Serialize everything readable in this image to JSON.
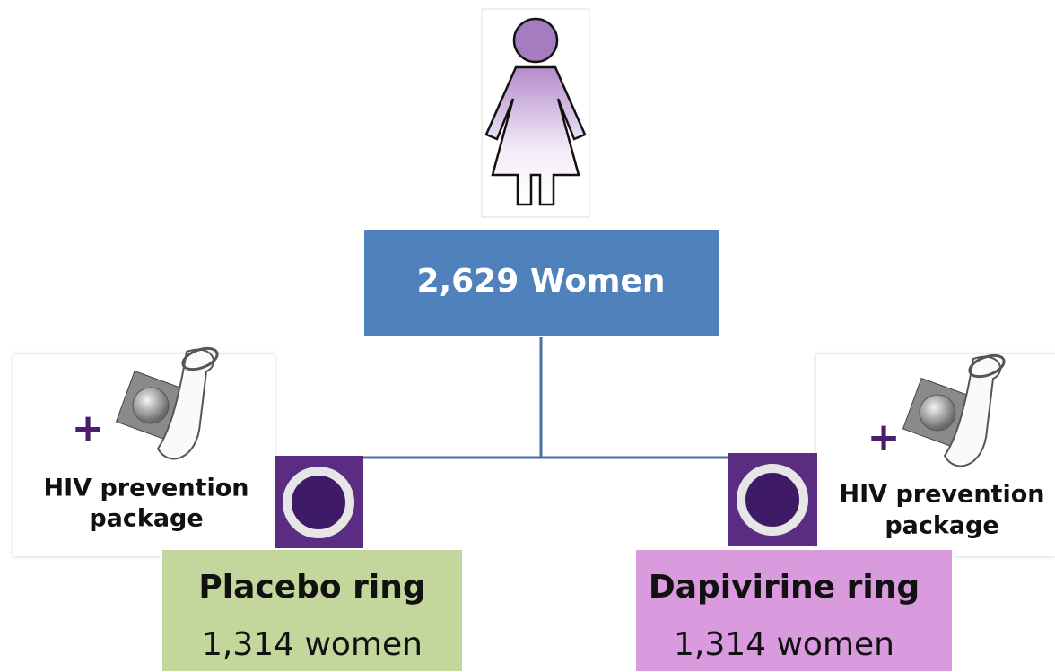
{
  "top": {
    "label": "2,629 Women"
  },
  "arms": [
    {
      "name": "Placebo ring",
      "count": "1,314 women",
      "package": {
        "plus": "+",
        "line1": "HIV prevention",
        "line2": "package"
      }
    },
    {
      "name": "Dapivirine ring",
      "count": "1,314 women",
      "package": {
        "plus": "+",
        "line1": "HIV prevention",
        "line2": "package"
      }
    }
  ]
}
